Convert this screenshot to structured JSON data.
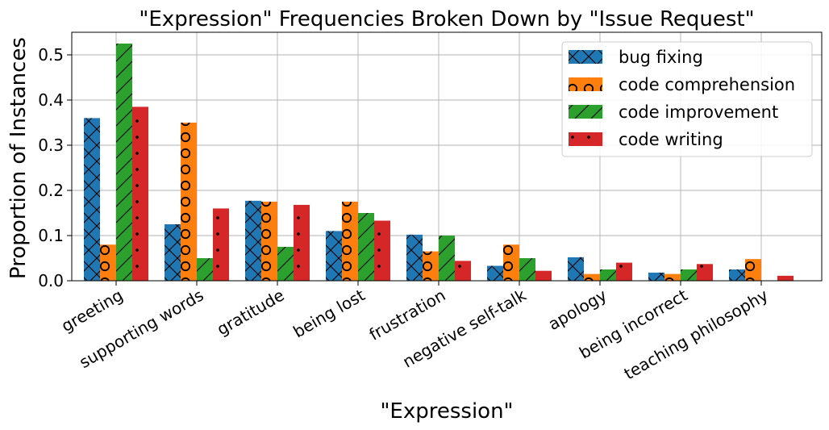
{
  "chart_data": {
    "type": "bar",
    "title": "\"Expression\" Frequencies Broken Down by \"Issue Request\"",
    "xlabel": "\"Expression\"",
    "ylabel": "Proportion of Instances",
    "ylim": [
      0,
      0.55
    ],
    "yticks": [
      "0.0",
      "0.1",
      "0.2",
      "0.3",
      "0.4",
      "0.5"
    ],
    "grid": true,
    "legend_position": "top-right",
    "categories": [
      "greeting",
      "supporting words",
      "gratitude",
      "being lost",
      "frustration",
      "negative self-talk",
      "apology",
      "being incorrect",
      "teaching philosophy"
    ],
    "series": [
      {
        "name": "bug fixing",
        "color": "#1f77b4",
        "hatch": "x",
        "values": [
          0.36,
          0.125,
          0.177,
          0.11,
          0.102,
          0.033,
          0.052,
          0.018,
          0.025
        ]
      },
      {
        "name": "code comprehension",
        "color": "#ff7f0e",
        "hatch": "o",
        "values": [
          0.08,
          0.35,
          0.175,
          0.175,
          0.065,
          0.08,
          0.015,
          0.015,
          0.048
        ]
      },
      {
        "name": "code improvement",
        "color": "#2ca02c",
        "hatch": "/",
        "values": [
          0.525,
          0.05,
          0.075,
          0.15,
          0.1,
          0.05,
          0.025,
          0.025,
          0.0
        ]
      },
      {
        "name": "code writing",
        "color": "#d62728",
        "hatch": ".",
        "values": [
          0.385,
          0.16,
          0.168,
          0.133,
          0.044,
          0.022,
          0.04,
          0.037,
          0.011
        ]
      }
    ]
  }
}
